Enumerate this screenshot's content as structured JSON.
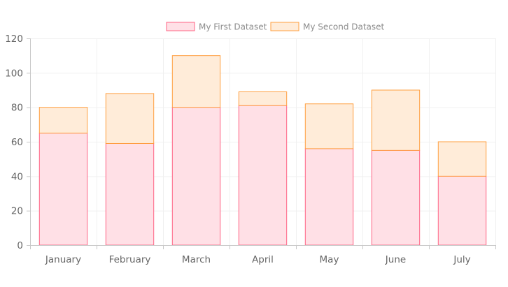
{
  "chart_data": {
    "type": "bar",
    "stacked": true,
    "categories": [
      "January",
      "February",
      "March",
      "April",
      "May",
      "June",
      "July"
    ],
    "series": [
      {
        "name": "My First Dataset",
        "values": [
          65,
          59,
          80,
          81,
          56,
          55,
          40
        ],
        "fill": "#ffe0e6",
        "stroke": "#ff6384"
      },
      {
        "name": "My Second Dataset",
        "values": [
          15,
          29,
          30,
          8,
          26,
          35,
          20
        ],
        "fill": "#ffecd9",
        "stroke": "#ff9f40"
      }
    ],
    "y_ticks": [
      "0",
      "20",
      "40",
      "60",
      "80",
      "100",
      "120"
    ],
    "ylim": [
      0,
      120
    ],
    "y_tick_values": [
      0,
      20,
      40,
      60,
      80,
      100,
      120
    ],
    "grid": true,
    "legend": "top-center",
    "title": "",
    "xlabel": "",
    "ylabel": ""
  }
}
